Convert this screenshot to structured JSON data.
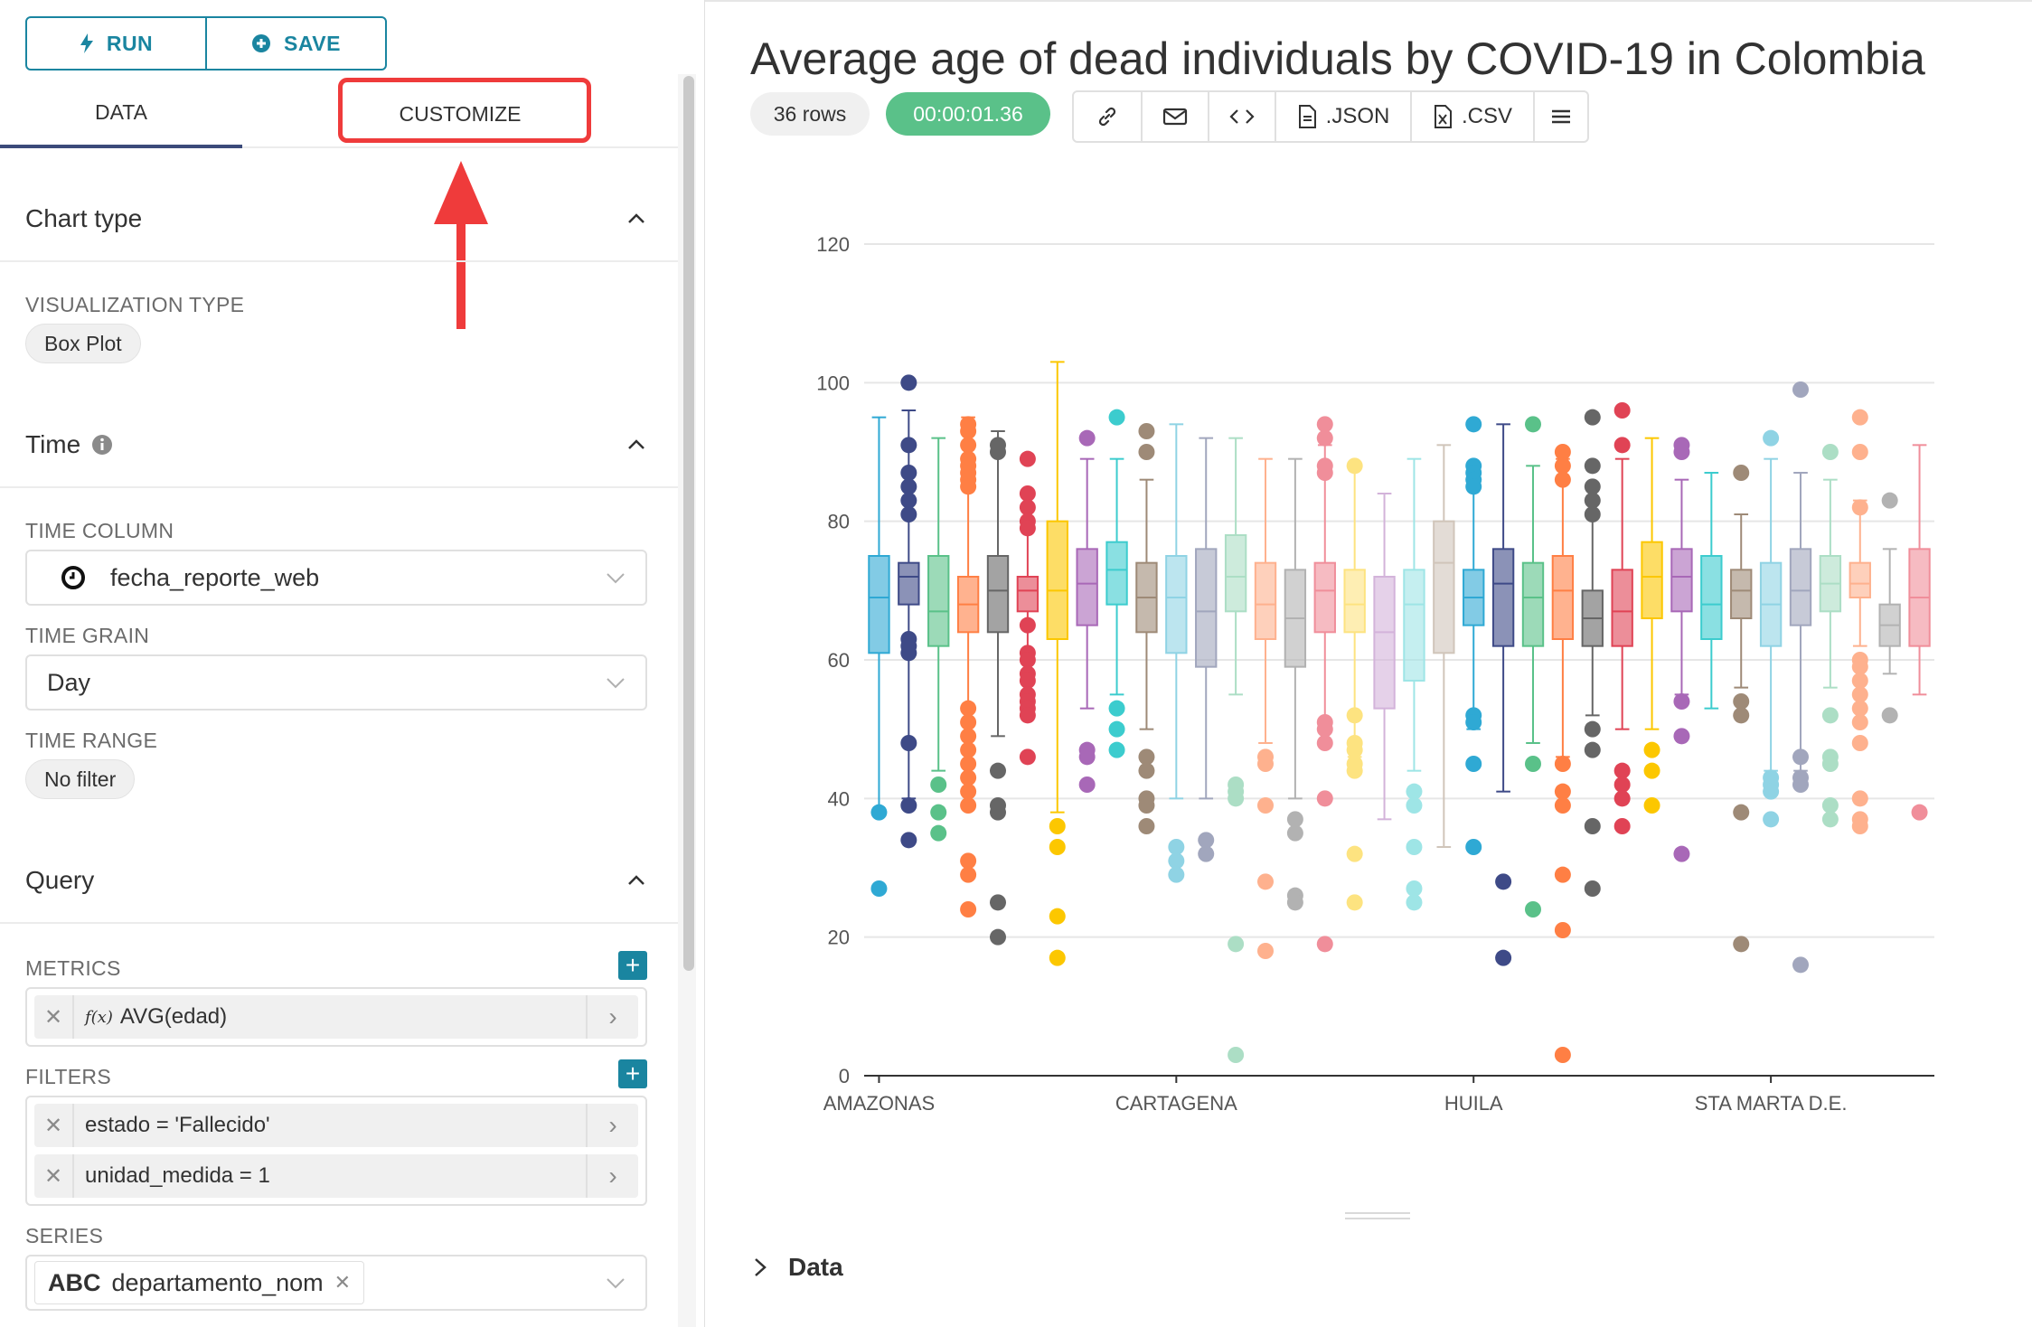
{
  "toolbar": {
    "run_label": "RUN",
    "save_label": "SAVE"
  },
  "tabs": {
    "data": "DATA",
    "customize": "CUSTOMIZE"
  },
  "chart_type_section": {
    "title": "Chart type",
    "viz_label": "VISUALIZATION TYPE",
    "viz_value": "Box Plot"
  },
  "time_section": {
    "title": "Time",
    "time_column_label": "TIME COLUMN",
    "time_column_value": "fecha_reporte_web",
    "time_grain_label": "TIME GRAIN",
    "time_grain_value": "Day",
    "time_range_label": "TIME RANGE",
    "time_range_value": "No filter"
  },
  "query_section": {
    "title": "Query",
    "metrics_label": "METRICS",
    "metric": "AVG(edad)",
    "metric_fx": "f(x)",
    "filters_label": "FILTERS",
    "filters": [
      "estado = 'Fallecido'",
      "unidad_medida = 1"
    ],
    "series_label": "SERIES",
    "series_type": "ABC",
    "series_value": "departamento_nom"
  },
  "header": {
    "title": "Average age of dead individuals by COVID-19 in Colombia",
    "rows": "36 rows",
    "timer": "00:00:01.36",
    "json_label": ".JSON",
    "csv_label": ".CSV"
  },
  "data_toggle": "Data",
  "colors": {
    "accent": "#1a85a0",
    "highlight": "#ef3b3b",
    "timer_bg": "#5ac189"
  },
  "chart_data": {
    "type": "box",
    "title": "",
    "xlabel": "",
    "ylabel": "",
    "ylim": [
      0,
      120
    ],
    "yticks": [
      0,
      20,
      40,
      60,
      80,
      100,
      120
    ],
    "xtick_labels": [
      "AMAZONAS",
      "CARTAGENA",
      "HUILA",
      "STA MARTA D.E."
    ],
    "series": [
      {
        "color": "#2fa9d4",
        "whislo": 38,
        "q1": 61,
        "med": 69,
        "q3": 75,
        "whishi": 95,
        "fliers": [
          38,
          27
        ]
      },
      {
        "color": "#3e4a87",
        "whislo": 40,
        "q1": 68,
        "med": 72,
        "q3": 74,
        "whishi": 96,
        "fliers": [
          100,
          91,
          87,
          85,
          83,
          81,
          63,
          62,
          61,
          48,
          39,
          34
        ]
      },
      {
        "color": "#5ac189",
        "whislo": 44,
        "q1": 62,
        "med": 67,
        "q3": 75,
        "whishi": 92,
        "fliers": [
          42,
          38,
          35
        ]
      },
      {
        "color": "#ff7f44",
        "whislo": 47,
        "q1": 64,
        "med": 68,
        "q3": 72,
        "whishi": 95,
        "fliers": [
          94,
          93,
          91,
          89,
          88,
          87,
          86,
          85,
          53,
          51,
          49,
          47,
          45,
          43,
          41,
          39,
          31,
          29,
          24
        ]
      },
      {
        "color": "#666666",
        "whislo": 49,
        "q1": 64,
        "med": 70,
        "q3": 75,
        "whishi": 93,
        "fliers": [
          91,
          90,
          44,
          39,
          38,
          25,
          20
        ]
      },
      {
        "color": "#e04355",
        "whislo": 54,
        "q1": 67,
        "med": 70,
        "q3": 72,
        "whishi": 79,
        "fliers": [
          89,
          84,
          82,
          80,
          79,
          65,
          61,
          60,
          58,
          57,
          55,
          54,
          53,
          52,
          46
        ]
      },
      {
        "color": "#fcc700",
        "whislo": 38,
        "q1": 63,
        "med": 70,
        "q3": 80,
        "whishi": 103,
        "fliers": [
          36,
          33,
          23,
          17
        ]
      },
      {
        "color": "#a868b7",
        "whislo": 53,
        "q1": 65,
        "med": 71,
        "q3": 76,
        "whishi": 89,
        "fliers": [
          92,
          47,
          46,
          42
        ]
      },
      {
        "color": "#3cccce",
        "whislo": 55,
        "q1": 68,
        "med": 73,
        "q3": 77,
        "whishi": 89,
        "fliers": [
          95,
          53,
          50,
          47
        ]
      },
      {
        "color": "#9e8a77",
        "whislo": 50,
        "q1": 64,
        "med": 69,
        "q3": 74,
        "whishi": 86,
        "fliers": [
          93,
          90,
          46,
          44,
          40,
          39,
          36
        ]
      },
      {
        "color": "#8fd3e4",
        "whislo": 40,
        "q1": 61,
        "med": 69,
        "q3": 75,
        "whishi": 94,
        "fliers": [
          33,
          31,
          29
        ]
      },
      {
        "color": "#a1a6bd",
        "whislo": 40,
        "q1": 59,
        "med": 67,
        "q3": 76,
        "whishi": 92,
        "fliers": [
          34,
          32
        ]
      },
      {
        "color": "#acdec5",
        "whislo": 55,
        "q1": 67,
        "med": 72,
        "q3": 78,
        "whishi": 92,
        "fliers": [
          42,
          41,
          40,
          19,
          3
        ]
      },
      {
        "color": "#feb18e",
        "whislo": 48,
        "q1": 63,
        "med": 68,
        "q3": 74,
        "whishi": 89,
        "fliers": [
          46,
          45,
          39,
          28,
          18
        ]
      },
      {
        "color": "#b2b2b2",
        "whislo": 40,
        "q1": 59,
        "med": 66,
        "q3": 73,
        "whishi": 89,
        "fliers": [
          37,
          35,
          26,
          25
        ]
      },
      {
        "color": "#f08e9a",
        "whislo": 50,
        "q1": 64,
        "med": 70,
        "q3": 74,
        "whishi": 91,
        "fliers": [
          94,
          92,
          88,
          87,
          51,
          50,
          48,
          40,
          19
        ]
      },
      {
        "color": "#fde380",
        "whislo": 46,
        "q1": 64,
        "med": 68,
        "q3": 73,
        "whishi": 88,
        "fliers": [
          88,
          52,
          48,
          47,
          45,
          44,
          32,
          25
        ]
      },
      {
        "color": "#d3b3da",
        "whislo": 37,
        "q1": 53,
        "med": 64,
        "q3": 72,
        "whishi": 84,
        "fliers": []
      },
      {
        "color": "#9ee5e6",
        "whislo": 44,
        "q1": 57,
        "med": 68,
        "q3": 73,
        "whishi": 89,
        "fliers": [
          41,
          39,
          33,
          27,
          25
        ]
      },
      {
        "color": "#d0c5ba",
        "whislo": 33,
        "q1": 61,
        "med": 74,
        "q3": 80,
        "whishi": 91,
        "fliers": []
      },
      {
        "color": "#2fa9d4",
        "whislo": 50,
        "q1": 65,
        "med": 69,
        "q3": 73,
        "whishi": 85,
        "fliers": [
          94,
          88,
          87,
          86,
          85,
          52,
          51,
          45,
          33
        ]
      },
      {
        "color": "#3e4a87",
        "whislo": 41,
        "q1": 62,
        "med": 71,
        "q3": 76,
        "whishi": 94,
        "fliers": [
          28,
          17
        ]
      },
      {
        "color": "#5ac189",
        "whislo": 48,
        "q1": 62,
        "med": 69,
        "q3": 74,
        "whishi": 88,
        "fliers": [
          94,
          45,
          24
        ]
      },
      {
        "color": "#ff7f44",
        "whislo": 46,
        "q1": 63,
        "med": 70,
        "q3": 75,
        "whishi": 89,
        "fliers": [
          90,
          88,
          86,
          45,
          41,
          39,
          29,
          21,
          3
        ]
      },
      {
        "color": "#666666",
        "whislo": 52,
        "q1": 62,
        "med": 66,
        "q3": 70,
        "whishi": 81,
        "fliers": [
          95,
          88,
          85,
          83,
          81,
          50,
          47,
          36,
          27
        ]
      },
      {
        "color": "#e04355",
        "whislo": 50,
        "q1": 62,
        "med": 67,
        "q3": 73,
        "whishi": 89,
        "fliers": [
          96,
          91,
          44,
          42,
          40,
          36
        ]
      },
      {
        "color": "#fcc700",
        "whislo": 50,
        "q1": 66,
        "med": 72,
        "q3": 77,
        "whishi": 92,
        "fliers": [
          47,
          44,
          39
        ]
      },
      {
        "color": "#a868b7",
        "whislo": 55,
        "q1": 67,
        "med": 72,
        "q3": 76,
        "whishi": 86,
        "fliers": [
          91,
          90,
          54,
          49,
          32
        ]
      },
      {
        "color": "#3cccce",
        "whislo": 53,
        "q1": 63,
        "med": 68,
        "q3": 75,
        "whishi": 87,
        "fliers": []
      },
      {
        "color": "#9e8a77",
        "whislo": 56,
        "q1": 66,
        "med": 70,
        "q3": 73,
        "whishi": 81,
        "fliers": [
          87,
          54,
          52,
          38,
          19
        ]
      },
      {
        "color": "#8fd3e4",
        "whislo": 44,
        "q1": 62,
        "med": 68,
        "q3": 74,
        "whishi": 89,
        "fliers": [
          92,
          43,
          42,
          41,
          37
        ]
      },
      {
        "color": "#a1a6bd",
        "whislo": 44,
        "q1": 65,
        "med": 70,
        "q3": 76,
        "whishi": 87,
        "fliers": [
          99,
          46,
          43,
          42,
          16
        ]
      },
      {
        "color": "#acdec5",
        "whislo": 56,
        "q1": 67,
        "med": 71,
        "q3": 75,
        "whishi": 86,
        "fliers": [
          90,
          52,
          46,
          45,
          39,
          37
        ]
      },
      {
        "color": "#feb18e",
        "whislo": 62,
        "q1": 69,
        "med": 71,
        "q3": 74,
        "whishi": 83,
        "fliers": [
          95,
          90,
          82,
          60,
          59,
          57,
          55,
          53,
          51,
          48,
          40,
          37,
          36
        ]
      },
      {
        "color": "#b2b2b2",
        "whislo": 58,
        "q1": 62,
        "med": 65,
        "q3": 68,
        "whishi": 76,
        "fliers": [
          83,
          52
        ]
      },
      {
        "color": "#f08e9a",
        "whislo": 55,
        "q1": 62,
        "med": 69,
        "q3": 76,
        "whishi": 91,
        "fliers": [
          38
        ]
      }
    ]
  }
}
